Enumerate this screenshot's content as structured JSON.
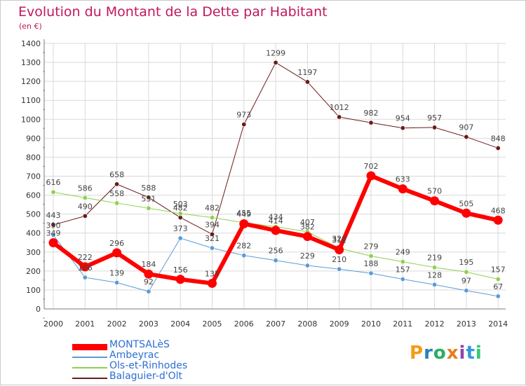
{
  "title": "Evolution du Montant de la Dette par Habitant",
  "subtitle": "(en €)",
  "logo": "Proxiti",
  "colors": {
    "title": "#c2185b",
    "axis": "#7a7a7a",
    "grid": "#d9d9d9",
    "legend_text": "#2c6fd1"
  },
  "chart_data": {
    "type": "line",
    "title": "Evolution du Montant de la Dette par Habitant",
    "subtitle": "(en €)",
    "xlabel": "",
    "ylabel": "",
    "ylim": [
      0,
      1400
    ],
    "yticks": [
      0,
      100,
      200,
      300,
      400,
      500,
      600,
      700,
      800,
      900,
      1000,
      1100,
      1200,
      1300,
      1400
    ],
    "grid": true,
    "legend_position": "bottom-left",
    "x": [
      "2000",
      "2001",
      "2002",
      "2003",
      "2004",
      "2005",
      "2006",
      "2007",
      "2008",
      "2009",
      "2010",
      "2011",
      "2012",
      "2013",
      "2014"
    ],
    "series": [
      {
        "name": "Balaguier-d'Olt",
        "color": "#6b1a1a",
        "width": 1,
        "values": [
          443,
          490,
          658,
          588,
          482,
          394,
          973,
          1299,
          1197,
          1012,
          982,
          954,
          957,
          907,
          848
        ],
        "labels": [
          "443",
          "490",
          "658",
          "588",
          "482",
          "394",
          "973",
          "1299",
          "1197",
          "1012",
          "982",
          "954",
          "957",
          "907",
          "848"
        ]
      },
      {
        "name": "Ols-et-Rinhodes",
        "color": "#8fd14f",
        "width": 1,
        "values": [
          616,
          586,
          558,
          531,
          503,
          482,
          455,
          434,
          407,
          320,
          279,
          249,
          219,
          195,
          157
        ],
        "labels": [
          "616",
          "586",
          "558",
          "531",
          "503",
          "482",
          "455",
          "434",
          "407",
          "320",
          "279",
          "249",
          "219",
          "195",
          "157"
        ]
      },
      {
        "name": "Ambeyrac",
        "color": "#5b9bd5",
        "width": 1,
        "values": [
          390,
          166,
          139,
          92,
          373,
          321,
          282,
          256,
          229,
          210,
          188,
          157,
          128,
          97,
          67
        ],
        "labels": [
          "390",
          "166",
          "139",
          "92",
          "373",
          "321",
          "282",
          "256",
          "229",
          "210",
          "188",
          "157",
          "128",
          "97",
          "67"
        ]
      },
      {
        "name": "MONTSALèS",
        "color": "#ff0000",
        "width": 6,
        "values": [
          349,
          222,
          296,
          184,
          156,
          135,
          449,
          414,
          382,
          312,
          702,
          633,
          570,
          505,
          468
        ],
        "labels": [
          "349",
          "222",
          "296",
          "184",
          "156",
          "135",
          "449",
          "414",
          "382",
          "312",
          "702",
          "633",
          "570",
          "505",
          "468"
        ]
      }
    ]
  },
  "legend": [
    {
      "name": "MONTSALèS",
      "color": "#ff0000",
      "thickness": 9
    },
    {
      "name": "Ambeyrac",
      "color": "#5b9bd5",
      "thickness": 2
    },
    {
      "name": "Ols-et-Rinhodes",
      "color": "#8fd14f",
      "thickness": 2
    },
    {
      "name": "Balaguier-d'Olt",
      "color": "#6b1a1a",
      "thickness": 2
    }
  ]
}
